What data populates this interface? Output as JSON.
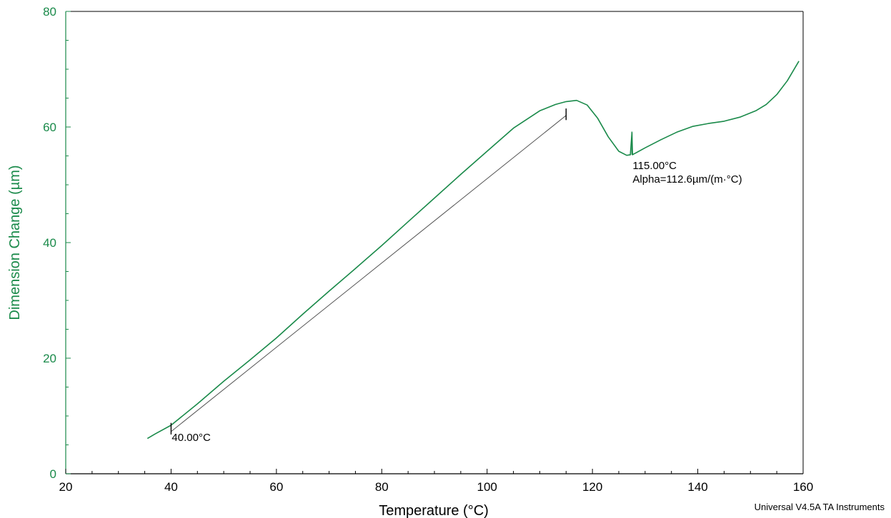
{
  "chart_data": {
    "type": "line",
    "xlabel": "Temperature (°C)",
    "ylabel": "Dimension Change (µm)",
    "xlim": [
      20,
      160
    ],
    "ylim": [
      0,
      80
    ],
    "x_ticks": [
      20,
      40,
      60,
      80,
      100,
      120,
      140,
      160
    ],
    "y_ticks": [
      0,
      20,
      40,
      60,
      80
    ],
    "grid": false,
    "colors": {
      "series": "#1a8a4a",
      "axis_y": "#1a8a4a",
      "axis_x": "#000000",
      "fit": "#555555"
    },
    "series": [
      {
        "x": [
          35.5,
          37,
          40,
          45,
          50,
          55,
          60,
          65,
          70,
          75,
          80,
          85,
          90,
          95,
          100,
          105,
          110,
          113,
          115,
          117,
          119,
          121,
          123,
          125,
          126.5,
          127.2,
          127.5,
          127.6,
          127.8,
          130,
          133,
          136,
          139,
          142,
          145,
          148,
          151,
          153,
          155,
          157,
          159.2
        ],
        "y": [
          6.1,
          6.9,
          8.4,
          12.1,
          16.0,
          19.7,
          23.5,
          27.6,
          31.6,
          35.5,
          39.5,
          43.6,
          47.7,
          51.8,
          55.8,
          59.8,
          62.8,
          63.9,
          64.4,
          64.6,
          63.8,
          61.5,
          58.3,
          55.8,
          55.1,
          55.2,
          59.0,
          55.2,
          55.3,
          56.4,
          57.8,
          59.1,
          60.1,
          60.6,
          61.0,
          61.7,
          62.8,
          63.9,
          65.6,
          68.0,
          71.4
        ]
      }
    ],
    "fit_line": {
      "x": [
        40,
        115
      ],
      "y": [
        7.3,
        62.0
      ]
    },
    "annotations": [
      {
        "label": "40.00°C",
        "x": 40,
        "y": 8.4
      },
      {
        "label": "115.00°C",
        "x": 127.5,
        "y": 55.2
      },
      {
        "label": "Alpha=112.6µm/(m·°C)",
        "x": 127.5,
        "y": 55.2
      }
    ],
    "markers": [
      {
        "x": 40,
        "y_from": 6.8,
        "y_to": 8.8
      },
      {
        "x": 115,
        "y_from": 61.2,
        "y_to": 63.2
      },
      {
        "x": 127.5,
        "y_from": 55.2,
        "y_to": 59.2
      }
    ]
  },
  "footer": {
    "text": "Universal V4.5A TA Instruments"
  }
}
